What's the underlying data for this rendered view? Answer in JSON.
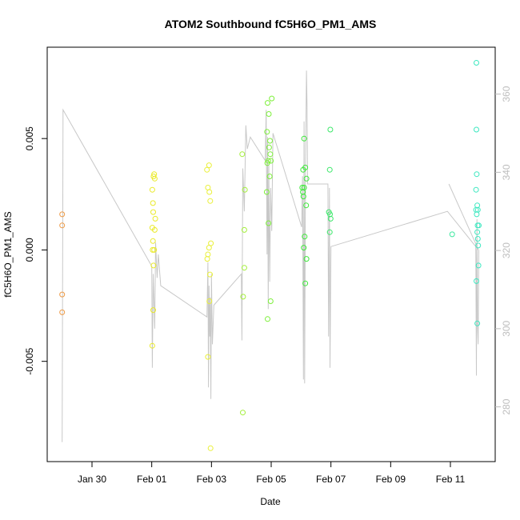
{
  "chart_data": {
    "type": "scatter",
    "title": "ATOM2 Southbound fC5H6O_PM1_AMS",
    "xlabel": "Date",
    "ylabel": "fC5H6O_PM1_AMS",
    "x_ticks": [
      "Jan 30",
      "Feb 01",
      "Feb 03",
      "Feb 05",
      "Feb 07",
      "Feb 09",
      "Feb 11"
    ],
    "x_tick_days": [
      30,
      32,
      34,
      36,
      38,
      40,
      42
    ],
    "xlim_days": [
      28.5,
      43.5
    ],
    "y_ticks": [
      "-0.005",
      "0.000",
      "0.005"
    ],
    "y_tick_values": [
      -0.005,
      0.0,
      0.005
    ],
    "ylim": [
      -0.0095,
      0.0091
    ],
    "y2_ticks": [
      "280",
      "300",
      "320",
      "340",
      "360"
    ],
    "y2_tick_values": [
      280,
      300,
      320,
      340,
      360
    ],
    "y2lim": [
      266,
      372
    ],
    "grid": false,
    "points": [
      {
        "x": 29.0,
        "y": 0.0016,
        "color": "#ee9a45"
      },
      {
        "x": 29.0,
        "y": 0.0011,
        "color": "#ee9a45"
      },
      {
        "x": 29.0,
        "y": -0.002,
        "color": "#ee9a45"
      },
      {
        "x": 29.0,
        "y": -0.0028,
        "color": "#ee9a45"
      },
      {
        "x": 32.02,
        "y": 0.0027,
        "color": "#eaea2a"
      },
      {
        "x": 32.04,
        "y": 0.0021,
        "color": "#eaea2a"
      },
      {
        "x": 32.06,
        "y": 0.0033,
        "color": "#eaea2a"
      },
      {
        "x": 32.08,
        "y": 0.0034,
        "color": "#eaea2a"
      },
      {
        "x": 32.1,
        "y": 0.0032,
        "color": "#eaea2a"
      },
      {
        "x": 32.05,
        "y": 0.0017,
        "color": "#eaea2a"
      },
      {
        "x": 32.12,
        "y": 0.0014,
        "color": "#eaea2a"
      },
      {
        "x": 32.02,
        "y": 0.001,
        "color": "#eaea2a"
      },
      {
        "x": 32.1,
        "y": 0.0009,
        "color": "#eaea2a"
      },
      {
        "x": 32.04,
        "y": 0.0004,
        "color": "#eaea2a"
      },
      {
        "x": 32.03,
        "y": 0.0,
        "color": "#eaea2a"
      },
      {
        "x": 32.08,
        "y": 0.0,
        "color": "#eaea2a"
      },
      {
        "x": 32.06,
        "y": -0.0007,
        "color": "#eaea2a"
      },
      {
        "x": 32.05,
        "y": -0.0027,
        "color": "#eaea2a"
      },
      {
        "x": 32.02,
        "y": -0.0043,
        "color": "#eaea2a"
      },
      {
        "x": 33.85,
        "y": 0.0036,
        "color": "#eaf03a"
      },
      {
        "x": 33.92,
        "y": 0.0038,
        "color": "#eaf03a"
      },
      {
        "x": 33.88,
        "y": 0.0028,
        "color": "#eaf03a"
      },
      {
        "x": 33.93,
        "y": 0.0026,
        "color": "#eaf03a"
      },
      {
        "x": 33.96,
        "y": 0.0022,
        "color": "#eaf03a"
      },
      {
        "x": 33.98,
        "y": 0.0003,
        "color": "#eaf03a"
      },
      {
        "x": 33.92,
        "y": 0.0001,
        "color": "#eaf03a"
      },
      {
        "x": 33.88,
        "y": -0.0002,
        "color": "#eaf03a"
      },
      {
        "x": 33.86,
        "y": -0.0004,
        "color": "#eaf03a"
      },
      {
        "x": 33.95,
        "y": -0.0011,
        "color": "#eaf03a"
      },
      {
        "x": 33.93,
        "y": -0.0023,
        "color": "#eaf03a"
      },
      {
        "x": 33.88,
        "y": -0.0048,
        "color": "#eaf03a"
      },
      {
        "x": 33.97,
        "y": -0.0089,
        "color": "#eaf03a"
      },
      {
        "x": 35.03,
        "y": 0.0043,
        "color": "#a3ef3a"
      },
      {
        "x": 35.12,
        "y": 0.0027,
        "color": "#a3ef3a"
      },
      {
        "x": 35.1,
        "y": 0.0009,
        "color": "#a3ef3a"
      },
      {
        "x": 35.1,
        "y": -0.0008,
        "color": "#a3ef3a"
      },
      {
        "x": 35.06,
        "y": -0.0021,
        "color": "#a3ef3a"
      },
      {
        "x": 35.05,
        "y": -0.0073,
        "color": "#a3ef3a"
      },
      {
        "x": 35.88,
        "y": 0.0066,
        "color": "#7df03a"
      },
      {
        "x": 36.02,
        "y": 0.0068,
        "color": "#7df03a"
      },
      {
        "x": 35.92,
        "y": 0.0061,
        "color": "#7df03a"
      },
      {
        "x": 35.86,
        "y": 0.0053,
        "color": "#7df03a"
      },
      {
        "x": 35.96,
        "y": 0.0049,
        "color": "#7df03a"
      },
      {
        "x": 35.93,
        "y": 0.0046,
        "color": "#7df03a"
      },
      {
        "x": 35.97,
        "y": 0.0043,
        "color": "#7df03a"
      },
      {
        "x": 35.9,
        "y": 0.004,
        "color": "#7df03a"
      },
      {
        "x": 35.99,
        "y": 0.004,
        "color": "#7df03a"
      },
      {
        "x": 35.87,
        "y": 0.0039,
        "color": "#7df03a"
      },
      {
        "x": 35.95,
        "y": 0.0033,
        "color": "#7df03a"
      },
      {
        "x": 35.85,
        "y": 0.0026,
        "color": "#7df03a"
      },
      {
        "x": 35.91,
        "y": 0.0012,
        "color": "#7df03a"
      },
      {
        "x": 35.98,
        "y": -0.0023,
        "color": "#7df03a"
      },
      {
        "x": 35.88,
        "y": -0.0031,
        "color": "#7df03a"
      },
      {
        "x": 37.1,
        "y": 0.005,
        "color": "#3eea3a"
      },
      {
        "x": 37.07,
        "y": 0.0036,
        "color": "#3eea3a"
      },
      {
        "x": 37.14,
        "y": 0.0037,
        "color": "#3eea3a"
      },
      {
        "x": 37.18,
        "y": 0.0032,
        "color": "#3eea3a"
      },
      {
        "x": 37.04,
        "y": 0.0028,
        "color": "#3eea3a"
      },
      {
        "x": 37.1,
        "y": 0.0028,
        "color": "#3eea3a"
      },
      {
        "x": 37.06,
        "y": 0.0026,
        "color": "#3eea3a"
      },
      {
        "x": 37.08,
        "y": 0.0024,
        "color": "#3eea3a"
      },
      {
        "x": 37.17,
        "y": 0.002,
        "color": "#3eea3a"
      },
      {
        "x": 37.12,
        "y": 0.0006,
        "color": "#3eea3a"
      },
      {
        "x": 37.09,
        "y": 0.0001,
        "color": "#3eea3a"
      },
      {
        "x": 37.18,
        "y": -0.0004,
        "color": "#3eea3a"
      },
      {
        "x": 37.14,
        "y": -0.0015,
        "color": "#3eea3a"
      },
      {
        "x": 37.98,
        "y": 0.0054,
        "color": "#3ce86a"
      },
      {
        "x": 37.96,
        "y": 0.0036,
        "color": "#3ce86a"
      },
      {
        "x": 37.93,
        "y": 0.0017,
        "color": "#3ce86a"
      },
      {
        "x": 37.97,
        "y": 0.0016,
        "color": "#3ce86a"
      },
      {
        "x": 37.99,
        "y": 0.0014,
        "color": "#3ce86a"
      },
      {
        "x": 37.96,
        "y": 0.0008,
        "color": "#3ce86a"
      },
      {
        "x": 42.06,
        "y": 0.0007,
        "color": "#3ce89f"
      },
      {
        "x": 42.87,
        "y": 0.0084,
        "color": "#3de8c0"
      },
      {
        "x": 42.87,
        "y": 0.0054,
        "color": "#3de8c0"
      },
      {
        "x": 42.88,
        "y": 0.0034,
        "color": "#3de8c0"
      },
      {
        "x": 42.86,
        "y": 0.0027,
        "color": "#3de8c0"
      },
      {
        "x": 42.9,
        "y": 0.002,
        "color": "#3de8c0"
      },
      {
        "x": 42.92,
        "y": 0.0018,
        "color": "#3de8c0"
      },
      {
        "x": 42.86,
        "y": 0.0018,
        "color": "#3de8c0"
      },
      {
        "x": 42.88,
        "y": 0.0016,
        "color": "#3de8c0"
      },
      {
        "x": 42.91,
        "y": 0.0011,
        "color": "#3de8c0"
      },
      {
        "x": 42.95,
        "y": 0.0011,
        "color": "#3de8c0"
      },
      {
        "x": 42.9,
        "y": 0.0008,
        "color": "#3de8c0"
      },
      {
        "x": 42.92,
        "y": 0.0005,
        "color": "#3de8c0"
      },
      {
        "x": 42.93,
        "y": 0.0002,
        "color": "#3de8c0"
      },
      {
        "x": 42.94,
        "y": -0.0007,
        "color": "#3de8c0"
      },
      {
        "x": 42.87,
        "y": -0.0014,
        "color": "#3de8c0"
      },
      {
        "x": 42.9,
        "y": -0.0033,
        "color": "#3de8c0"
      }
    ],
    "secondary_line": {
      "color": "#c8c8c8",
      "x": [
        29.0,
        29.03,
        32.0,
        32.02,
        32.05,
        32.1,
        32.13,
        32.18,
        32.22,
        32.3,
        33.85,
        33.88,
        33.9,
        33.92,
        33.94,
        33.96,
        33.98,
        34.0,
        34.03,
        34.08,
        35.0,
        35.02,
        35.05,
        35.1,
        35.15,
        35.2,
        35.3,
        35.8,
        35.83,
        35.86,
        35.88,
        35.9,
        35.92,
        35.95,
        35.98,
        36.02,
        36.06,
        37.02,
        37.05,
        37.08,
        37.1,
        37.12,
        37.15,
        37.18,
        37.2,
        37.22,
        37.9,
        37.92,
        37.95,
        37.97,
        38.0,
        41.9,
        42.85,
        42.87,
        42.89,
        42.91,
        42.93,
        42.95,
        41.95
      ],
      "y2": [
        271,
        356,
        316,
        290,
        314,
        300,
        322,
        313,
        319,
        311,
        303,
        317,
        285,
        311,
        298,
        308,
        282,
        314,
        296,
        306,
        314,
        297,
        341,
        330,
        352,
        346,
        349,
        343,
        356,
        319,
        349,
        305,
        342,
        312,
        336,
        325,
        350,
        326,
        339,
        287,
        353,
        286,
        342,
        366,
        357,
        337,
        337,
        298,
        336,
        290,
        321,
        330,
        321,
        288,
        328,
        300,
        296,
        320,
        337
      ]
    }
  }
}
